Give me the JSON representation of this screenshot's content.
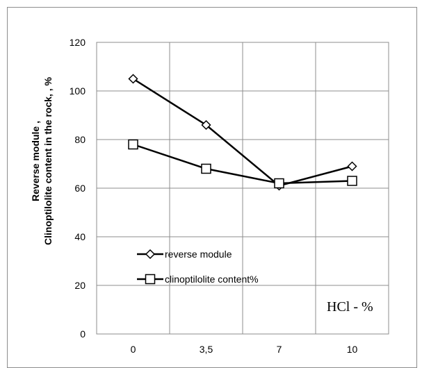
{
  "chart_data": {
    "type": "line",
    "categories": [
      "0",
      "3,5",
      "7",
      "10"
    ],
    "series": [
      {
        "name": "reverse module",
        "marker": "diamond",
        "values": [
          105,
          86,
          61,
          69
        ]
      },
      {
        "name": "clinoptilolite content%",
        "marker": "square",
        "values": [
          78,
          68,
          62,
          63
        ]
      }
    ],
    "ylim": [
      0,
      120
    ],
    "yticks": [
      0,
      20,
      40,
      60,
      80,
      100,
      120
    ],
    "ylabel_line1": "Reverse module ,",
    "ylabel_line2": "Clinoptilolite content in the rock, , %",
    "annotation": "HCl - %",
    "grid": true,
    "legend_position": "bottom-left",
    "line_color": "#000000"
  }
}
